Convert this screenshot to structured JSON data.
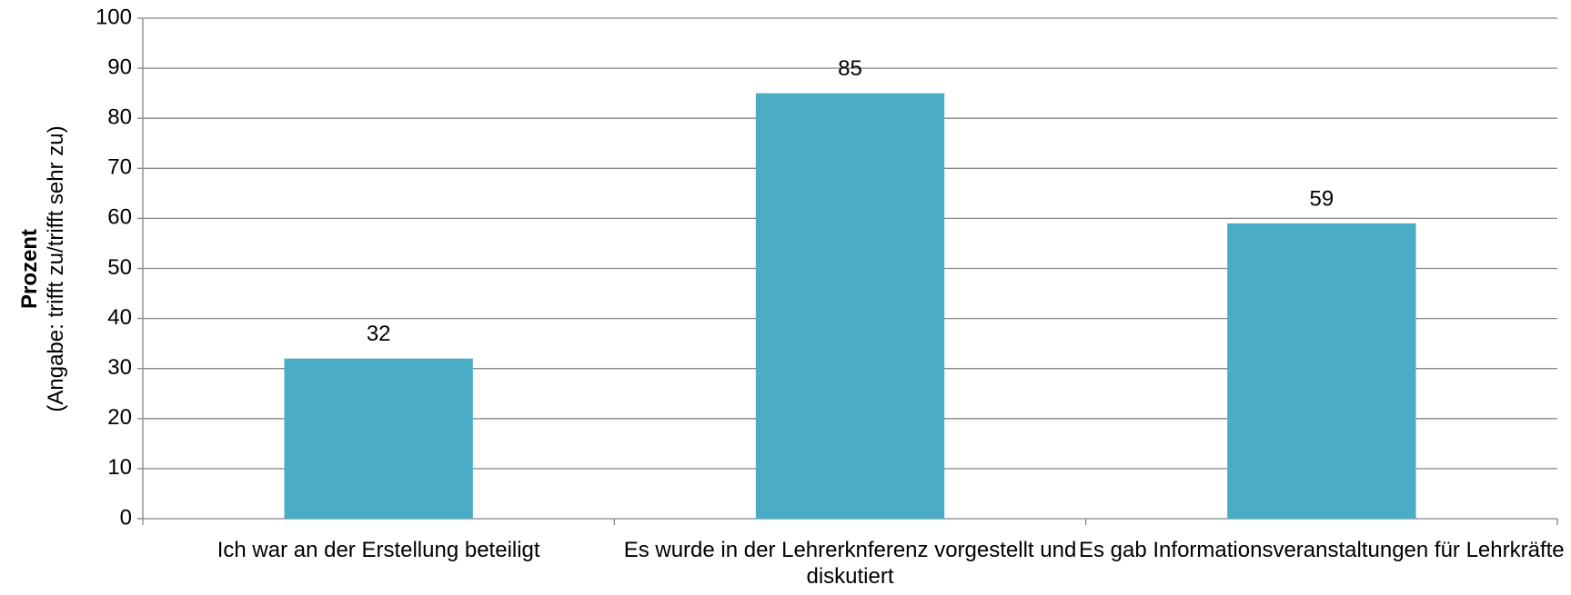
{
  "chart_data": {
    "type": "bar",
    "ylabel": "Prozent",
    "ylabel_note": "(Angabe: trifft zu/trifft sehr zu)",
    "categories": [
      "Ich war an der Erstellung beteiligt",
      "Es wurde in der Lehrerknferenz vorgestellt und diskutiert",
      "Es gab Informationsveranstaltungen für Lehrkräfte"
    ],
    "values": [
      32,
      85,
      59
    ],
    "color": "#4bacc6",
    "ylim": [
      0,
      100
    ],
    "yticks": [
      0,
      10,
      20,
      30,
      40,
      50,
      60,
      70,
      80,
      90,
      100
    ],
    "grid": true
  }
}
